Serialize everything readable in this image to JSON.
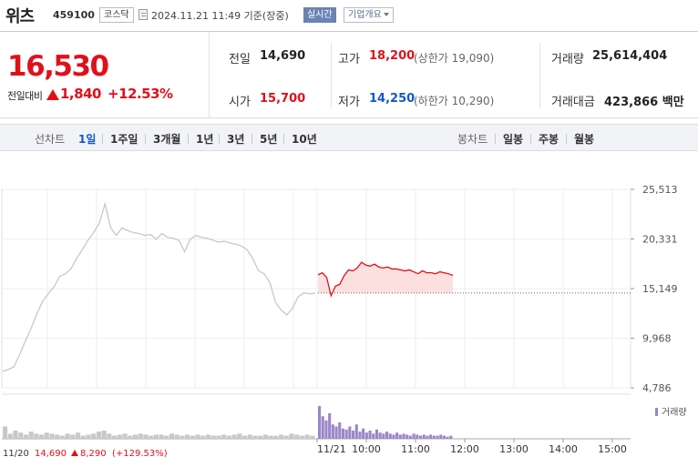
{
  "header": {
    "name": "위츠",
    "code": "459100",
    "market": "코스닥",
    "timestamp": "2024.11.21 11:49 기준(장중)",
    "realtime_label": "실시간",
    "company_label": "기업개요"
  },
  "quote": {
    "price": "16,530",
    "change_label": "전일대비",
    "change": "1,840",
    "change_pct": "+12.53%",
    "prev_close_label": "전일",
    "prev_close": "14,690",
    "open_label": "시가",
    "open": "15,700",
    "high_label": "고가",
    "high": "18,200",
    "upper_limit": "(상한가 19,090)",
    "low_label": "저가",
    "low": "14,250",
    "lower_limit": "(하한가 10,290)",
    "volume_label": "거래량",
    "volume": "25,614,404",
    "amount_label": "거래대금",
    "amount": "423,866 백만"
  },
  "period_bar": {
    "line_label": "선차트",
    "line_items": [
      "1일",
      "1주일",
      "3개월",
      "1년",
      "3년",
      "5년",
      "10년"
    ],
    "active": "1일",
    "candle_label": "봉차트",
    "candle_items": [
      "일봉",
      "주봉",
      "월봉"
    ]
  },
  "chart_data": {
    "type": "line",
    "y_ticks": [
      "25,513",
      "20,331",
      "15,149",
      "9,968",
      "4,786"
    ],
    "ylim": [
      4786,
      25513
    ],
    "prev_close": 14690,
    "x_ticks": [
      "11/21",
      "10:00",
      "11:00",
      "12:00",
      "13:00",
      "14:00",
      "15:00"
    ],
    "x_start_label": "11/20",
    "volume_legend": "거래량",
    "series": [
      {
        "period": "11/20",
        "values": [
          6500,
          6700,
          7000,
          8300,
          9700,
          11000,
          12500,
          13800,
          14600,
          15300,
          16400,
          16700,
          17200,
          18300,
          19200,
          20200,
          21000,
          22000,
          24000,
          21500,
          20700,
          21500,
          21200,
          21000,
          20900,
          20700,
          20800,
          20300,
          20900,
          20500,
          20400,
          20200,
          19000,
          20300,
          20700,
          20500,
          20400,
          20200,
          20000,
          20100,
          19900,
          19800,
          19600,
          19200,
          18300,
          17000,
          16700,
          15800,
          13700,
          12900,
          12400,
          13100,
          14300,
          14700,
          14600,
          14690
        ]
      },
      {
        "period": "11/21",
        "values": [
          16600,
          16800,
          16300,
          14400,
          15400,
          15600,
          16500,
          17100,
          17000,
          17300,
          17900,
          17600,
          17500,
          17700,
          17400,
          17300,
          17400,
          17200,
          17200,
          17100,
          17000,
          17100,
          16900,
          16700,
          17000,
          16800,
          16800,
          16700,
          16900,
          16800,
          16700,
          16530
        ]
      }
    ],
    "volume": {
      "11/20": [
        12,
        5,
        8,
        6,
        4,
        7,
        5,
        4,
        6,
        5,
        4,
        3,
        5,
        4,
        6,
        3,
        4,
        5,
        7,
        8,
        5,
        3,
        4,
        5,
        3,
        4,
        5,
        4,
        3,
        4,
        4,
        3,
        5,
        4,
        3,
        4,
        3,
        4,
        3,
        4,
        3,
        3,
        4,
        3,
        4,
        5,
        3,
        4,
        3,
        3,
        4,
        3,
        3,
        4,
        3,
        5,
        4,
        3,
        4,
        3
      ],
      "11/21": [
        32,
        22,
        18,
        25,
        14,
        12,
        16,
        10,
        9,
        12,
        8,
        14,
        7,
        10,
        6,
        8,
        5,
        9,
        6,
        5,
        7,
        5,
        4,
        6,
        4,
        5,
        4,
        3,
        5,
        4,
        3,
        4,
        3,
        4,
        3,
        3,
        4,
        3,
        2,
        3
      ]
    },
    "bottom_note": {
      "date": "11/20",
      "price": "14,690",
      "change": "8,290",
      "change_pct": "(+129.53%)"
    }
  },
  "colors": {
    "up": "#e0101b",
    "down": "#1358c9",
    "prev_line": "#c8c8c8",
    "vol_prev": "#c8c8c8",
    "vol_today": "#9a86c8"
  }
}
